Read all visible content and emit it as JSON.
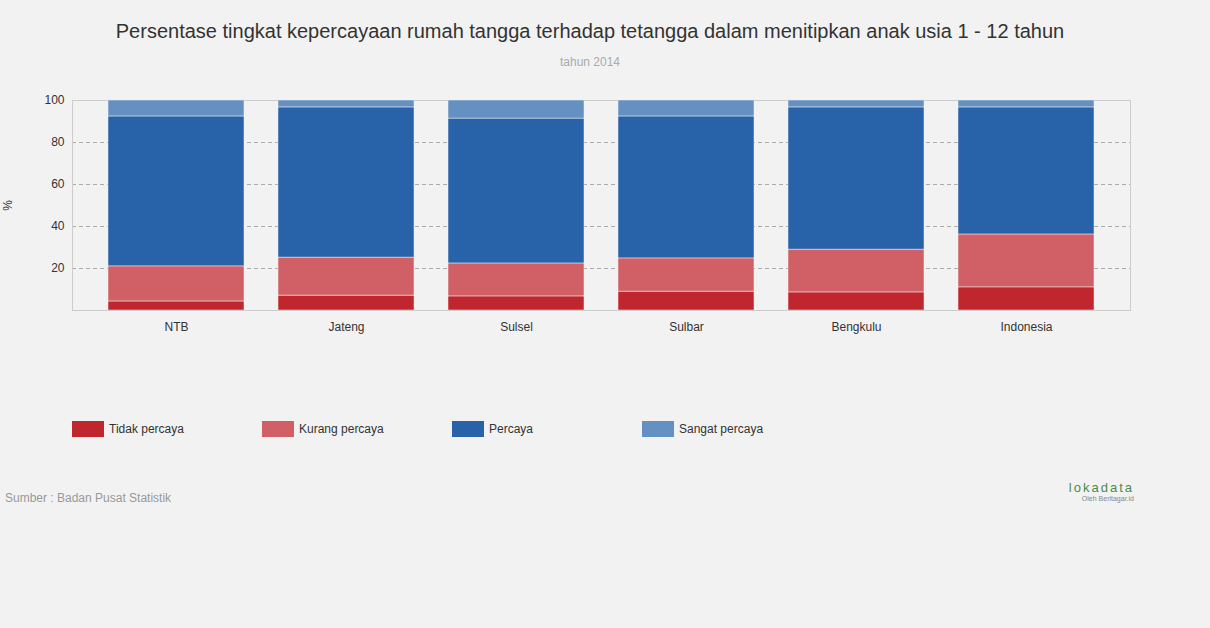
{
  "chart_data": {
    "type": "bar",
    "stacked": true,
    "title": "Persentase tingkat kepercayaan rumah tangga terhadap tetangga dalam menitipkan anak usia 1 - 12 tahun",
    "subtitle": "tahun 2014",
    "y_label": "%",
    "source": "Sumber : Badan Pusat Statistik",
    "logo": [
      "lokadata",
      "Oleh Beritagar.id"
    ],
    "categories": [
      "NTB",
      "Jateng",
      "Sulsel",
      "Sulbar",
      "Bengkulu",
      "Indonesia"
    ],
    "series": [
      {
        "name": "Tidak percaya",
        "color": "#c0262d",
        "values": [
          4.3,
          7.1,
          6.7,
          9.0,
          8.6,
          11.0
        ]
      },
      {
        "name": "Kurang percaya",
        "color": "#d06065",
        "values": [
          16.7,
          18.1,
          15.7,
          15.8,
          20.4,
          25.2
        ]
      },
      {
        "name": "Percaya",
        "color": "#2862a8",
        "values": [
          71.4,
          71.5,
          69.0,
          67.6,
          67.7,
          60.5
        ]
      },
      {
        "name": "Sangat percaya",
        "color": "#6590c2",
        "values": [
          7.6,
          3.3,
          8.6,
          7.6,
          3.3,
          3.3
        ]
      }
    ],
    "ylim": [
      0,
      100
    ],
    "yticks": [
      20,
      40,
      60,
      80,
      100
    ],
    "grid": true,
    "legend": "bottom-left"
  }
}
